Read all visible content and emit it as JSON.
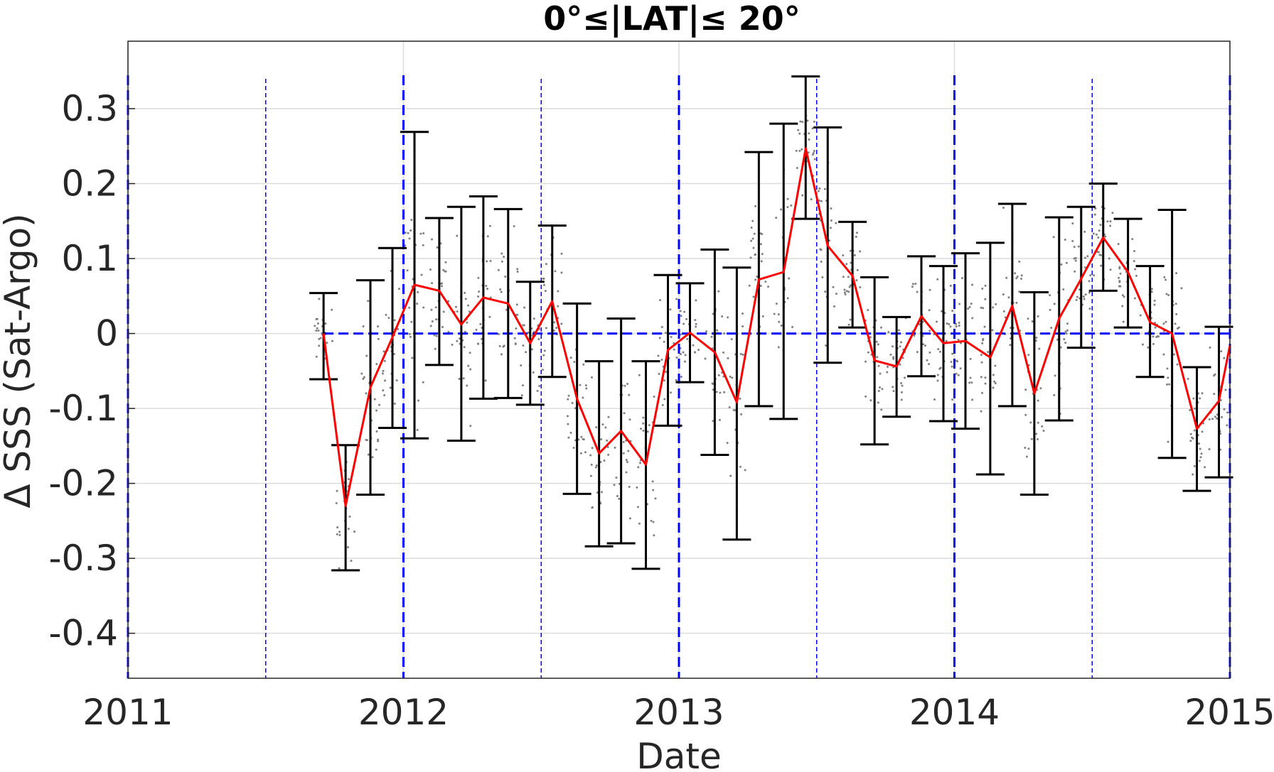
{
  "chart_data": {
    "type": "line",
    "title": "0°≤|LAT|≤ 20°",
    "xlabel": "Date",
    "ylabel": "Δ SSS (Sat-Argo)",
    "xlim": [
      2011.0,
      2015.0
    ],
    "ylim": [
      -0.46,
      0.39
    ],
    "x_ticks": [
      2011,
      2012,
      2013,
      2014,
      2015
    ],
    "x_tick_labels": [
      "2011",
      "2012",
      "2013",
      "2014",
      "2015"
    ],
    "y_ticks": [
      -0.4,
      -0.3,
      -0.2,
      -0.1,
      0,
      0.1,
      0.2,
      0.3
    ],
    "y_tick_labels": [
      "-0.4",
      "-0.3",
      "-0.2",
      "-0.1",
      "0",
      "0.1",
      "0.2",
      "0.3"
    ],
    "grid": true,
    "colors": {
      "mean_line": "#ff0000",
      "error_bars": "#000000",
      "reference_lines": "#0000ff",
      "scatter": "#808080",
      "grid": "#dcdcdc"
    },
    "reference_lines": {
      "zero_line": {
        "y": 0,
        "x_range": [
          2011.71,
          2015.0
        ],
        "style": "dashed"
      },
      "year_lines": [
        2011.0,
        2012.0,
        2013.0,
        2014.0,
        2015.0
      ],
      "half_year_lines": [
        2011.5,
        2012.5,
        2013.5,
        2014.5
      ]
    },
    "series": [
      {
        "type": "errorbar_line",
        "x": [
          2011.71,
          2011.79,
          2011.88,
          2011.96,
          2012.04,
          2012.13,
          2012.21,
          2012.29,
          2012.38,
          2012.46,
          2012.54,
          2012.63,
          2012.71,
          2012.79,
          2012.88,
          2012.96,
          2013.04,
          2013.13,
          2013.21,
          2013.29,
          2013.38,
          2013.46,
          2013.54,
          2013.63,
          2013.71,
          2013.79,
          2013.88,
          2013.96,
          2014.04,
          2014.13,
          2014.21,
          2014.29,
          2014.38,
          2014.46,
          2014.54,
          2014.63,
          2014.71,
          2014.79,
          2014.88,
          2014.96,
          2015.0
        ],
        "y": [
          0.0,
          -0.23,
          -0.072,
          -0.005,
          0.065,
          0.057,
          0.012,
          0.048,
          0.04,
          -0.013,
          0.043,
          -0.087,
          -0.16,
          -0.13,
          -0.175,
          -0.022,
          0.001,
          -0.025,
          -0.092,
          0.072,
          0.082,
          0.247,
          0.117,
          0.077,
          -0.036,
          -0.044,
          0.023,
          -0.013,
          -0.01,
          -0.032,
          0.037,
          -0.08,
          0.02,
          0.073,
          0.128,
          0.082,
          0.015,
          0.0,
          -0.127,
          -0.09,
          -0.016
        ],
        "lower": [
          -0.061,
          -0.316,
          -0.215,
          -0.126,
          -0.14,
          -0.042,
          -0.143,
          -0.087,
          -0.086,
          -0.095,
          -0.058,
          -0.214,
          -0.284,
          -0.28,
          -0.314,
          -0.123,
          -0.065,
          -0.162,
          -0.275,
          -0.097,
          -0.114,
          0.153,
          -0.039,
          0.008,
          -0.148,
          -0.111,
          -0.057,
          -0.117,
          -0.127,
          -0.188,
          -0.097,
          -0.215,
          -0.116,
          -0.019,
          0.057,
          0.008,
          -0.058,
          -0.166,
          -0.21,
          -0.192,
          null
        ],
        "upper": [
          0.054,
          -0.149,
          0.071,
          0.114,
          0.269,
          0.154,
          0.169,
          0.183,
          0.166,
          0.069,
          0.144,
          0.04,
          -0.037,
          0.02,
          -0.037,
          0.078,
          0.067,
          0.112,
          0.088,
          0.242,
          0.28,
          0.343,
          0.275,
          0.149,
          0.075,
          0.022,
          0.103,
          0.09,
          0.107,
          0.121,
          0.173,
          0.055,
          0.155,
          0.169,
          0.2,
          0.153,
          0.09,
          0.165,
          -0.045,
          0.009,
          null
        ]
      }
    ]
  }
}
